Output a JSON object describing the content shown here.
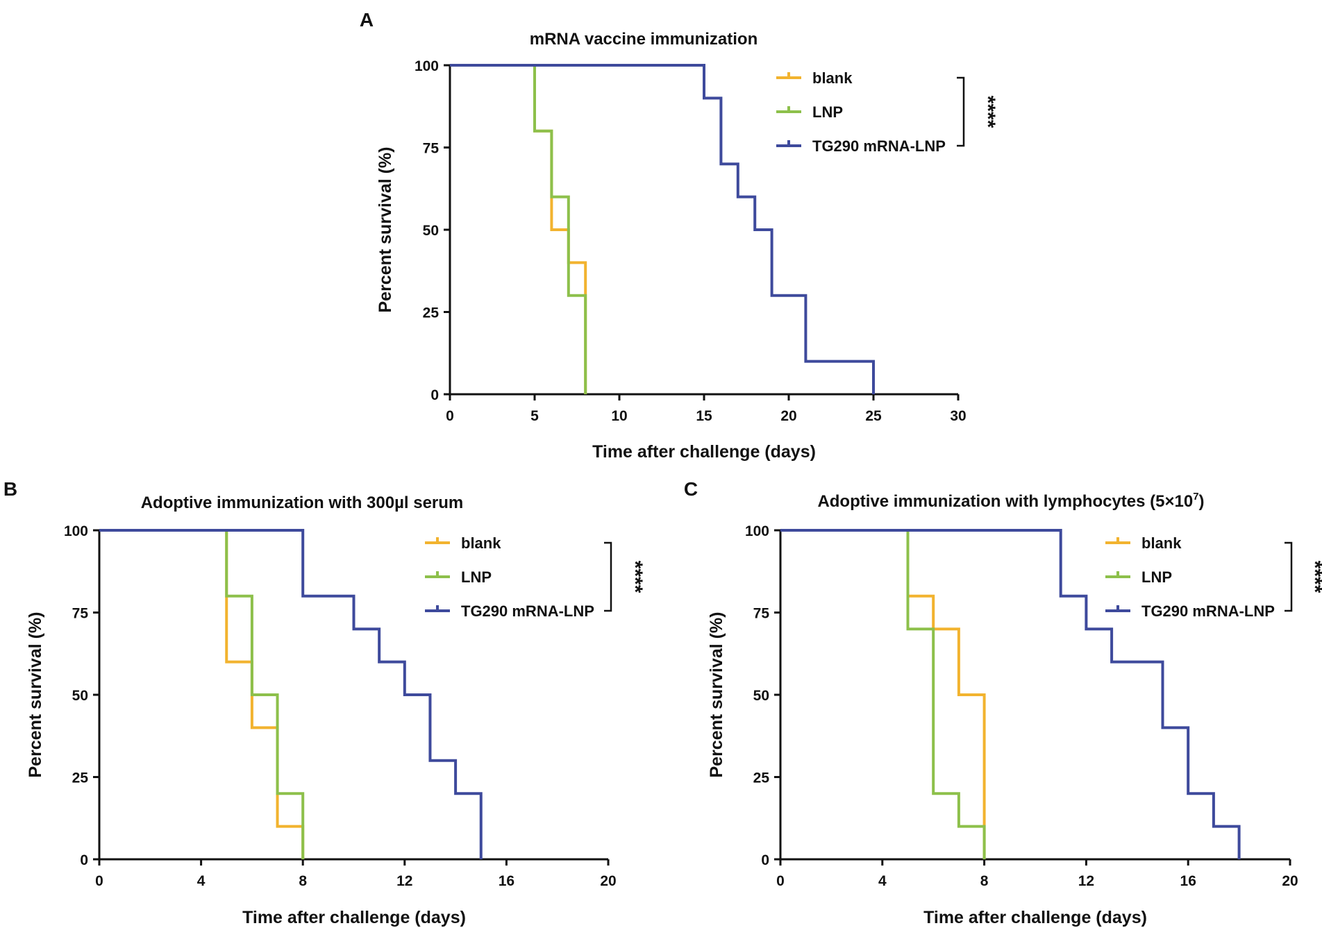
{
  "chart_data": [
    {
      "type": "line",
      "subtype": "kaplan-meier step survival curve",
      "panel": "A",
      "title": "mRNA vaccine immunization",
      "title_superscript": "",
      "title_suffix": "",
      "xlabel": "Time after challenge (days)",
      "ylabel": "Percent survival (%)",
      "xlim": [
        0,
        30
      ],
      "ylim": [
        0,
        100
      ],
      "xticks": [
        0,
        5,
        10,
        15,
        20,
        25,
        30
      ],
      "yticks": [
        0,
        25,
        50,
        75,
        100
      ],
      "grid": false,
      "legend_position": "top-right",
      "significance": "****",
      "series": [
        {
          "name": "blank",
          "color": "#F2B32F",
          "x": [
            0,
            5,
            6,
            7,
            8
          ],
          "y": [
            100,
            80,
            50,
            40,
            0
          ]
        },
        {
          "name": "LNP",
          "color": "#8DC04B",
          "x": [
            0,
            5,
            6,
            7,
            8
          ],
          "y": [
            100,
            80,
            60,
            30,
            0
          ]
        },
        {
          "name": "TG290 mRNA-LNP",
          "color": "#3E4A9C",
          "x": [
            0,
            15,
            16,
            17,
            18,
            19,
            21,
            25
          ],
          "y": [
            100,
            90,
            70,
            60,
            50,
            30,
            10,
            0
          ]
        }
      ]
    },
    {
      "type": "line",
      "subtype": "kaplan-meier step survival curve",
      "panel": "B",
      "title": "Adoptive immunization with 300µl serum",
      "title_superscript": "",
      "title_suffix": "",
      "xlabel": "Time after challenge (days)",
      "ylabel": "Percent survival (%)",
      "xlim": [
        0,
        20
      ],
      "ylim": [
        0,
        100
      ],
      "xticks": [
        0,
        4,
        8,
        12,
        16,
        20
      ],
      "yticks": [
        0,
        25,
        50,
        75,
        100
      ],
      "grid": false,
      "legend_position": "top-right",
      "significance": "****",
      "series": [
        {
          "name": "blank",
          "color": "#F2B32F",
          "x": [
            0,
            5,
            6,
            7,
            8
          ],
          "y": [
            100,
            60,
            40,
            10,
            0
          ]
        },
        {
          "name": "LNP",
          "color": "#8DC04B",
          "x": [
            0,
            5,
            6,
            7,
            8
          ],
          "y": [
            100,
            80,
            50,
            20,
            0
          ]
        },
        {
          "name": "TG290 mRNA-LNP",
          "color": "#3E4A9C",
          "x": [
            0,
            8,
            10,
            11,
            12,
            13,
            14,
            15
          ],
          "y": [
            100,
            80,
            70,
            60,
            50,
            30,
            20,
            0
          ]
        }
      ]
    },
    {
      "type": "line",
      "subtype": "kaplan-meier step survival curve",
      "panel": "C",
      "title": "Adoptive immunization with lymphocytes (5×10",
      "title_superscript": "7",
      "title_suffix": ")",
      "xlabel": "Time after challenge (days)",
      "ylabel": "Percent survival (%)",
      "xlim": [
        0,
        20
      ],
      "ylim": [
        0,
        100
      ],
      "xticks": [
        0,
        4,
        8,
        12,
        16,
        20
      ],
      "yticks": [
        0,
        25,
        50,
        75,
        100
      ],
      "grid": false,
      "legend_position": "top-right",
      "significance": "****",
      "series": [
        {
          "name": "blank",
          "color": "#F2B32F",
          "x": [
            0,
            5,
            6,
            7,
            8
          ],
          "y": [
            100,
            80,
            70,
            50,
            0
          ]
        },
        {
          "name": "LNP",
          "color": "#8DC04B",
          "x": [
            0,
            5,
            6,
            7,
            8
          ],
          "y": [
            100,
            70,
            20,
            10,
            0
          ]
        },
        {
          "name": "TG290 mRNA-LNP",
          "color": "#3E4A9C",
          "x": [
            0,
            11,
            12,
            13,
            15,
            16,
            17,
            18
          ],
          "y": [
            100,
            80,
            70,
            60,
            40,
            20,
            10,
            0
          ]
        }
      ]
    }
  ]
}
